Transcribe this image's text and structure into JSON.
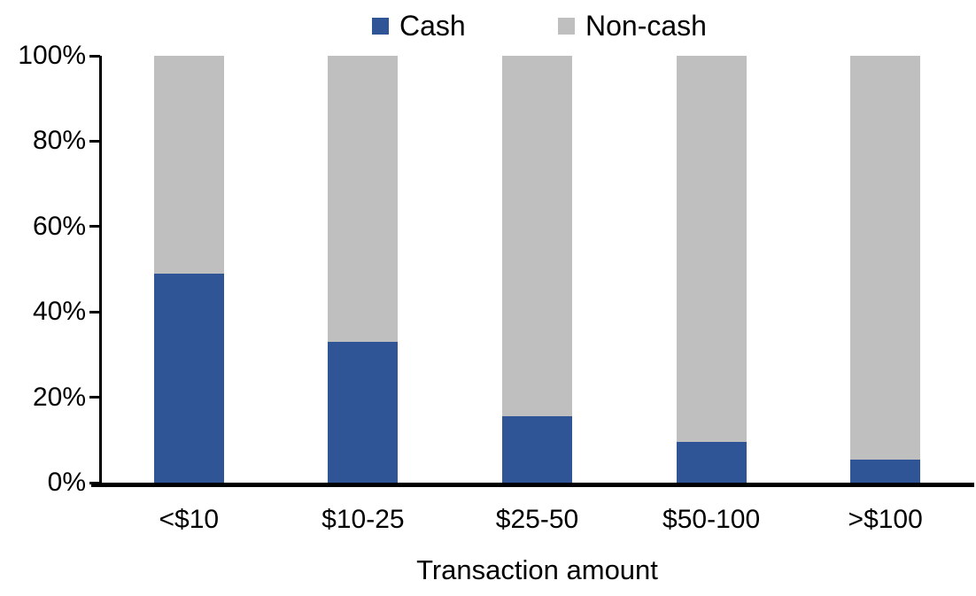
{
  "chart_data": {
    "type": "bar",
    "stacked": true,
    "percent_stacked": true,
    "title": "",
    "xlabel": "Transaction amount",
    "ylabel": "",
    "categories": [
      "<$10",
      "$10-25",
      "$25-50",
      "$50-100",
      ">$100"
    ],
    "series": [
      {
        "name": "Cash",
        "color": "#2F5597",
        "values": [
          49,
          33,
          15.5,
          9.5,
          5.5
        ]
      },
      {
        "name": "Non-cash",
        "color": "#BFBFBF",
        "values": [
          51,
          67,
          84.5,
          90.5,
          94.5
        ]
      }
    ],
    "ylim": [
      0,
      100
    ],
    "yticks": [
      {
        "percent": 0,
        "label": "0%"
      },
      {
        "percent": 20,
        "label": "20%"
      },
      {
        "percent": 40,
        "label": "40%"
      },
      {
        "percent": 60,
        "label": "60%"
      },
      {
        "percent": 80,
        "label": "80%"
      },
      {
        "percent": 100,
        "label": "100%"
      }
    ],
    "grid": false,
    "legend_position": "top-center",
    "axis_color": "#000000",
    "background_color": "#FFFFFF"
  }
}
